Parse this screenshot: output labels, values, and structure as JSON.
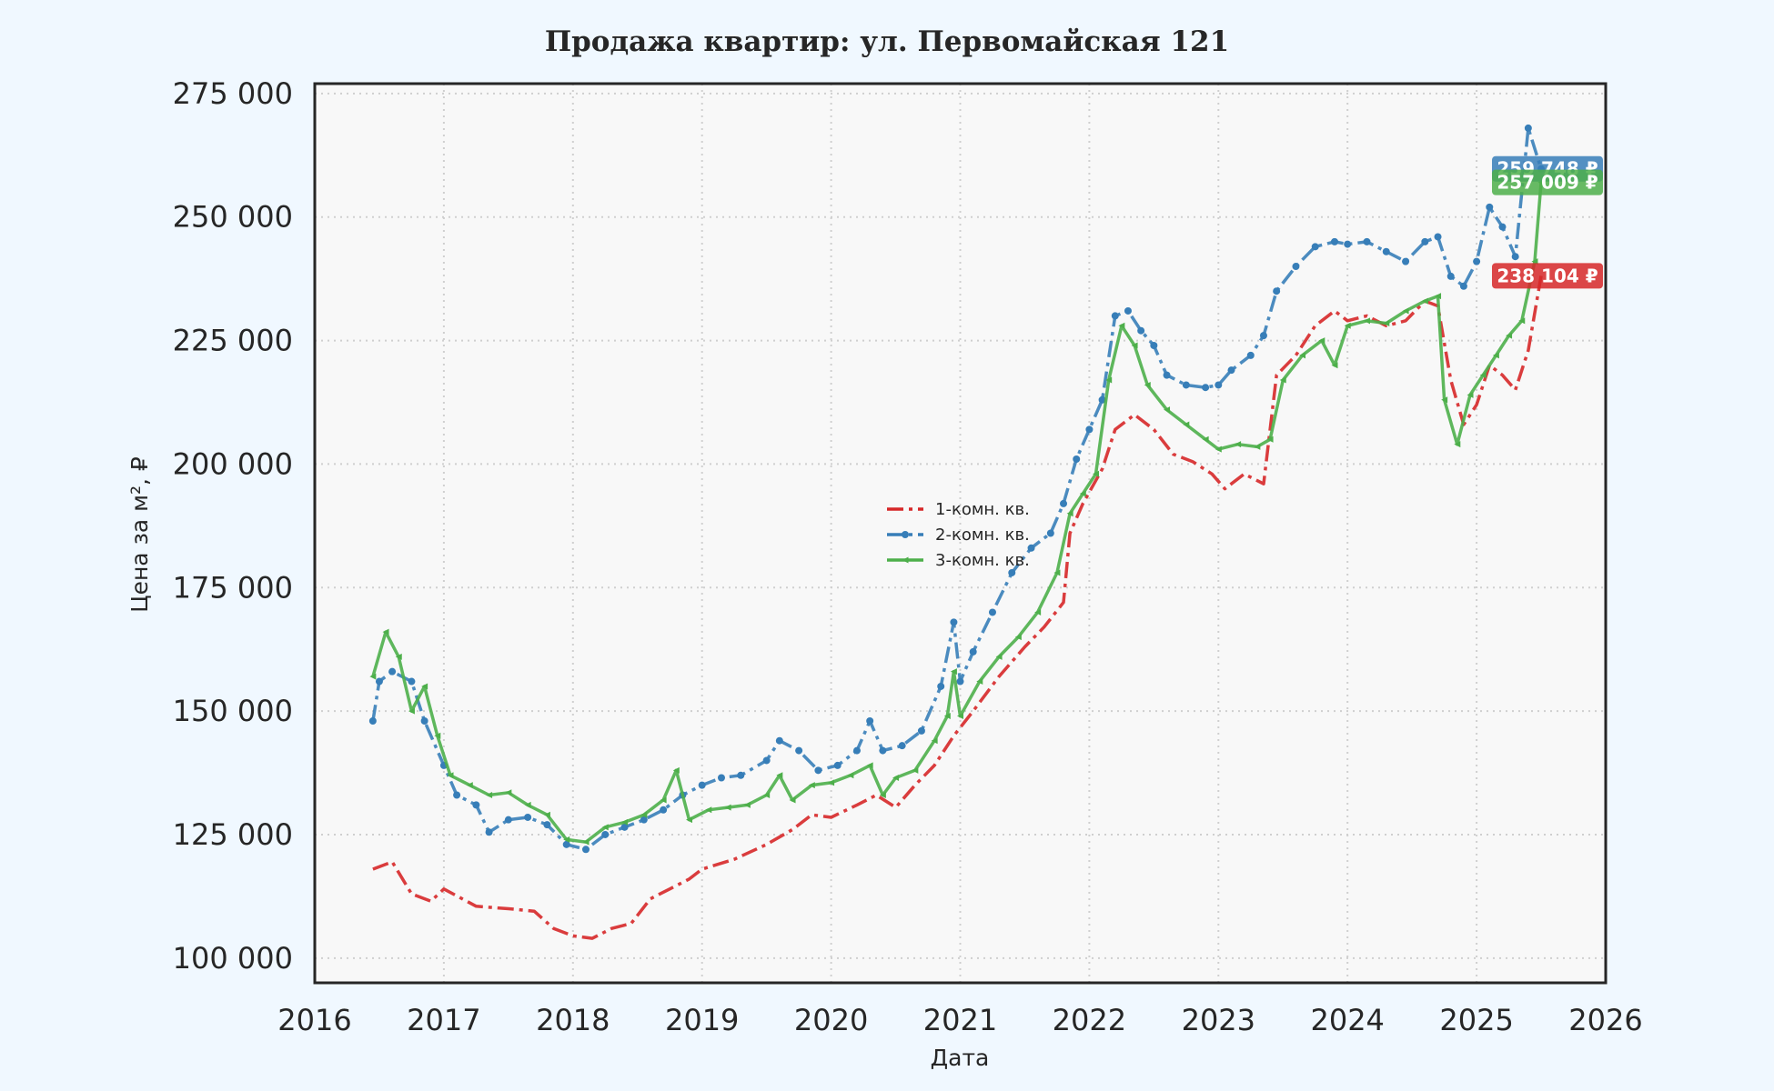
{
  "chart_data": {
    "type": "line",
    "title": "Продажа квартир: ул. Первомайская 121",
    "xlabel": "Дата",
    "ylabel": "Цена за м², ₽",
    "xlim": [
      2016,
      2026
    ],
    "ylim": [
      95000,
      277000
    ],
    "x_ticks": [
      2016,
      2017,
      2018,
      2019,
      2020,
      2021,
      2022,
      2023,
      2024,
      2025,
      2026
    ],
    "y_ticks": [
      100000,
      125000,
      150000,
      175000,
      200000,
      225000,
      250000,
      275000
    ],
    "y_tick_labels": [
      "100 000",
      "125 000",
      "150 000",
      "175 000",
      "200 000",
      "225 000",
      "250 000",
      "275 000"
    ],
    "grid": true,
    "legend_position": "center",
    "series": [
      {
        "name": "1-комн. кв.",
        "color": "#d62728",
        "line_style": "dash-dot",
        "end_label": "238 104 ₽",
        "points": [
          [
            2016.45,
            118000
          ],
          [
            2016.6,
            119500
          ],
          [
            2016.75,
            113000
          ],
          [
            2016.9,
            111500
          ],
          [
            2017.0,
            114000
          ],
          [
            2017.25,
            110500
          ],
          [
            2017.5,
            110000
          ],
          [
            2017.7,
            109500
          ],
          [
            2017.85,
            106000
          ],
          [
            2018.0,
            104500
          ],
          [
            2018.15,
            104000
          ],
          [
            2018.3,
            106000
          ],
          [
            2018.45,
            107000
          ],
          [
            2018.6,
            112000
          ],
          [
            2018.75,
            114000
          ],
          [
            2018.9,
            116000
          ],
          [
            2019.0,
            118000
          ],
          [
            2019.25,
            120000
          ],
          [
            2019.5,
            123000
          ],
          [
            2019.7,
            126000
          ],
          [
            2019.85,
            129000
          ],
          [
            2020.0,
            128500
          ],
          [
            2020.2,
            131000
          ],
          [
            2020.35,
            133000
          ],
          [
            2020.5,
            130500
          ],
          [
            2020.65,
            135000
          ],
          [
            2020.8,
            139000
          ],
          [
            2020.95,
            145000
          ],
          [
            2021.1,
            150000
          ],
          [
            2021.3,
            157000
          ],
          [
            2021.5,
            163000
          ],
          [
            2021.65,
            167000
          ],
          [
            2021.8,
            172000
          ],
          [
            2021.85,
            186000
          ],
          [
            2021.95,
            192000
          ],
          [
            2022.1,
            199000
          ],
          [
            2022.2,
            207000
          ],
          [
            2022.35,
            210000
          ],
          [
            2022.5,
            207000
          ],
          [
            2022.65,
            202000
          ],
          [
            2022.8,
            200500
          ],
          [
            2022.95,
            198000
          ],
          [
            2023.05,
            195000
          ],
          [
            2023.2,
            198000
          ],
          [
            2023.35,
            196000
          ],
          [
            2023.45,
            218000
          ],
          [
            2023.6,
            222000
          ],
          [
            2023.75,
            228000
          ],
          [
            2023.9,
            231000
          ],
          [
            2024.0,
            229000
          ],
          [
            2024.15,
            230000
          ],
          [
            2024.3,
            228000
          ],
          [
            2024.45,
            229000
          ],
          [
            2024.6,
            233000
          ],
          [
            2024.7,
            232000
          ],
          [
            2024.8,
            217000
          ],
          [
            2024.9,
            208000
          ],
          [
            2025.0,
            212000
          ],
          [
            2025.1,
            220000
          ],
          [
            2025.2,
            218000
          ],
          [
            2025.3,
            215000
          ],
          [
            2025.4,
            223000
          ],
          [
            2025.5,
            238104
          ]
        ]
      },
      {
        "name": "2-комн. кв.",
        "color": "#377eb8",
        "line_style": "dash-dot",
        "marker": "circle",
        "end_label": "259 748 ₽",
        "points": [
          [
            2016.45,
            148000
          ],
          [
            2016.5,
            156000
          ],
          [
            2016.6,
            158000
          ],
          [
            2016.75,
            156000
          ],
          [
            2016.85,
            148000
          ],
          [
            2017.0,
            139000
          ],
          [
            2017.1,
            133000
          ],
          [
            2017.25,
            131000
          ],
          [
            2017.35,
            125500
          ],
          [
            2017.5,
            128000
          ],
          [
            2017.65,
            128500
          ],
          [
            2017.8,
            127000
          ],
          [
            2017.95,
            123000
          ],
          [
            2018.1,
            122000
          ],
          [
            2018.25,
            125000
          ],
          [
            2018.4,
            126500
          ],
          [
            2018.55,
            128000
          ],
          [
            2018.7,
            130000
          ],
          [
            2018.85,
            133000
          ],
          [
            2019.0,
            135000
          ],
          [
            2019.15,
            136500
          ],
          [
            2019.3,
            137000
          ],
          [
            2019.5,
            140000
          ],
          [
            2019.6,
            144000
          ],
          [
            2019.75,
            142000
          ],
          [
            2019.9,
            138000
          ],
          [
            2020.05,
            139000
          ],
          [
            2020.2,
            142000
          ],
          [
            2020.3,
            148000
          ],
          [
            2020.4,
            142000
          ],
          [
            2020.55,
            143000
          ],
          [
            2020.7,
            146000
          ],
          [
            2020.85,
            155000
          ],
          [
            2020.95,
            168000
          ],
          [
            2021.0,
            156000
          ],
          [
            2021.1,
            162000
          ],
          [
            2021.25,
            170000
          ],
          [
            2021.4,
            178000
          ],
          [
            2021.55,
            183000
          ],
          [
            2021.7,
            186000
          ],
          [
            2021.8,
            192000
          ],
          [
            2021.9,
            201000
          ],
          [
            2022.0,
            207000
          ],
          [
            2022.1,
            213000
          ],
          [
            2022.2,
            230000
          ],
          [
            2022.3,
            231000
          ],
          [
            2022.4,
            227000
          ],
          [
            2022.5,
            224000
          ],
          [
            2022.6,
            218000
          ],
          [
            2022.75,
            216000
          ],
          [
            2022.9,
            215500
          ],
          [
            2023.0,
            216000
          ],
          [
            2023.1,
            219000
          ],
          [
            2023.25,
            222000
          ],
          [
            2023.35,
            226000
          ],
          [
            2023.45,
            235000
          ],
          [
            2023.6,
            240000
          ],
          [
            2023.75,
            244000
          ],
          [
            2023.9,
            245000
          ],
          [
            2024.0,
            244500
          ],
          [
            2024.15,
            245000
          ],
          [
            2024.3,
            243000
          ],
          [
            2024.45,
            241000
          ],
          [
            2024.6,
            245000
          ],
          [
            2024.7,
            246000
          ],
          [
            2024.8,
            238000
          ],
          [
            2024.9,
            236000
          ],
          [
            2025.0,
            241000
          ],
          [
            2025.1,
            252000
          ],
          [
            2025.2,
            248000
          ],
          [
            2025.3,
            242000
          ],
          [
            2025.4,
            268000
          ],
          [
            2025.5,
            259748
          ]
        ]
      },
      {
        "name": "3-комн. кв.",
        "color": "#4daf4a",
        "line_style": "solid",
        "marker": "triangle",
        "end_label": "257 009 ₽",
        "points": [
          [
            2016.45,
            157000
          ],
          [
            2016.55,
            166000
          ],
          [
            2016.65,
            161000
          ],
          [
            2016.75,
            150000
          ],
          [
            2016.85,
            155000
          ],
          [
            2016.95,
            145000
          ],
          [
            2017.05,
            137000
          ],
          [
            2017.2,
            135000
          ],
          [
            2017.35,
            133000
          ],
          [
            2017.5,
            133500
          ],
          [
            2017.65,
            131000
          ],
          [
            2017.8,
            129000
          ],
          [
            2017.95,
            124000
          ],
          [
            2018.1,
            123500
          ],
          [
            2018.25,
            126500
          ],
          [
            2018.4,
            127500
          ],
          [
            2018.55,
            129000
          ],
          [
            2018.7,
            132000
          ],
          [
            2018.8,
            138000
          ],
          [
            2018.9,
            128000
          ],
          [
            2019.05,
            130000
          ],
          [
            2019.2,
            130500
          ],
          [
            2019.35,
            131000
          ],
          [
            2019.5,
            133000
          ],
          [
            2019.6,
            137000
          ],
          [
            2019.7,
            132000
          ],
          [
            2019.85,
            135000
          ],
          [
            2020.0,
            135500
          ],
          [
            2020.15,
            137000
          ],
          [
            2020.3,
            139000
          ],
          [
            2020.4,
            133000
          ],
          [
            2020.5,
            136500
          ],
          [
            2020.65,
            138000
          ],
          [
            2020.8,
            144000
          ],
          [
            2020.9,
            149000
          ],
          [
            2020.95,
            158000
          ],
          [
            2021.0,
            149000
          ],
          [
            2021.15,
            156000
          ],
          [
            2021.3,
            161000
          ],
          [
            2021.45,
            165000
          ],
          [
            2021.6,
            170000
          ],
          [
            2021.75,
            178000
          ],
          [
            2021.85,
            190000
          ],
          [
            2021.95,
            194000
          ],
          [
            2022.05,
            198000
          ],
          [
            2022.15,
            217000
          ],
          [
            2022.25,
            228000
          ],
          [
            2022.35,
            224000
          ],
          [
            2022.45,
            216000
          ],
          [
            2022.6,
            211000
          ],
          [
            2022.75,
            208000
          ],
          [
            2022.9,
            205000
          ],
          [
            2023.0,
            203000
          ],
          [
            2023.15,
            204000
          ],
          [
            2023.3,
            203500
          ],
          [
            2023.4,
            205000
          ],
          [
            2023.5,
            217000
          ],
          [
            2023.65,
            222000
          ],
          [
            2023.8,
            225000
          ],
          [
            2023.9,
            220000
          ],
          [
            2024.0,
            228000
          ],
          [
            2024.15,
            229000
          ],
          [
            2024.3,
            228500
          ],
          [
            2024.45,
            231000
          ],
          [
            2024.6,
            233000
          ],
          [
            2024.7,
            234000
          ],
          [
            2024.75,
            213000
          ],
          [
            2024.85,
            204000
          ],
          [
            2024.95,
            214000
          ],
          [
            2025.05,
            218000
          ],
          [
            2025.15,
            222000
          ],
          [
            2025.25,
            226000
          ],
          [
            2025.35,
            229000
          ],
          [
            2025.45,
            241000
          ],
          [
            2025.5,
            257009
          ]
        ]
      }
    ]
  }
}
